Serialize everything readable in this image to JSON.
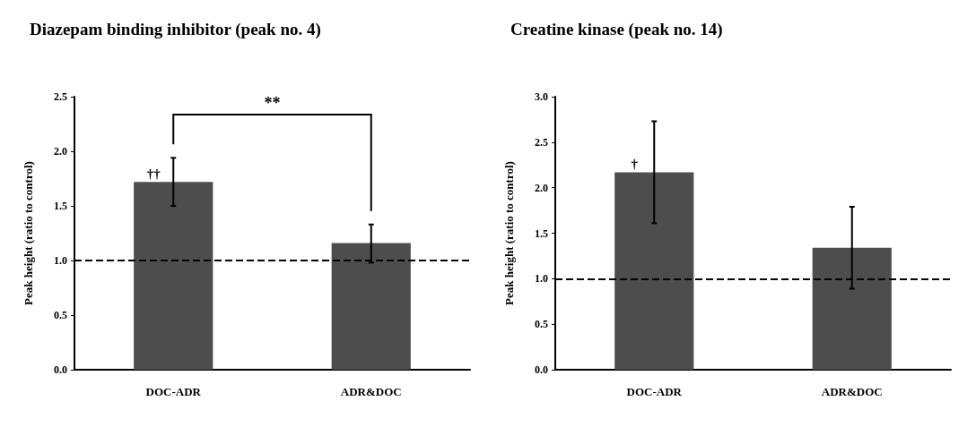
{
  "chart_data": [
    {
      "type": "bar",
      "title": "Diazepam binding inhibitor (peak no. 4)",
      "ylabel": "Peak height (ratio to control)",
      "categories": [
        "DOC-ADR",
        "ADR&DOC"
      ],
      "values": [
        1.72,
        1.16
      ],
      "errors": [
        [
          1.5,
          1.94
        ],
        [
          0.98,
          1.33
        ]
      ],
      "color": "#4d4d4d",
      "ylim": [
        0,
        2.5
      ],
      "yticks": [
        {
          "value": 0,
          "label": "0.0"
        },
        {
          "value": 0.5,
          "label": "0.5"
        },
        {
          "value": 1,
          "label": "1.0"
        },
        {
          "value": 1.5,
          "label": "1.5"
        },
        {
          "value": 2,
          "label": "2.0"
        },
        {
          "value": 2.5,
          "label": "2.5"
        }
      ],
      "ref_lines": [
        {
          "axis": "y",
          "value": 1,
          "line_style": "dashed"
        }
      ],
      "annotations": [
        {
          "text": "††",
          "x": "DOC-ADR",
          "y": 1.72
        },
        "**"
      ],
      "grid": false
    },
    {
      "type": "bar",
      "title": "Creatine kinase (peak no. 14)",
      "ylabel": "Peak height (ratio to control)",
      "categories": [
        "DOC-ADR",
        "ADR&DOC"
      ],
      "values": [
        2.17,
        1.34
      ],
      "errors": [
        [
          1.61,
          2.73
        ],
        [
          0.89,
          1.79
        ]
      ],
      "color": "#4d4d4d",
      "ylim": [
        0,
        3
      ],
      "yticks": [
        {
          "value": 0,
          "label": "0.0"
        },
        {
          "value": 0.5,
          "label": "0.5"
        },
        {
          "value": 1,
          "label": "1.0"
        },
        {
          "value": 1.5,
          "label": "1.5"
        },
        {
          "value": 2,
          "label": "2.0"
        },
        {
          "value": 2.5,
          "label": "2.5"
        },
        {
          "value": 3,
          "label": "3.0"
        }
      ],
      "ref_lines": [
        {
          "axis": "y",
          "value": 1,
          "line_style": "dashed"
        }
      ],
      "annotations": [
        {
          "text": "†",
          "x": "DOC-ADR",
          "y": 2.17
        }
      ],
      "grid": false
    }
  ]
}
